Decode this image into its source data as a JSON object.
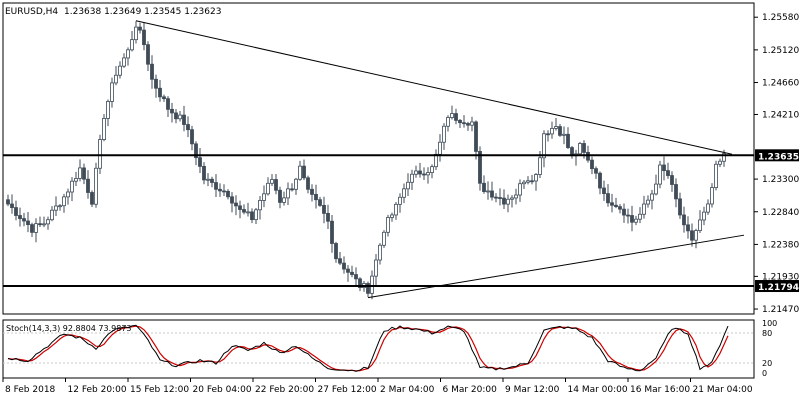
{
  "header": {
    "symbol": "EURUSD,H4",
    "ohlc": "1.23638 1.23649 1.23545 1.23623"
  },
  "price_axis": {
    "ticks": [
      {
        "label": "1.25580",
        "value": 1.2558
      },
      {
        "label": "1.25120",
        "value": 1.2512
      },
      {
        "label": "1.24660",
        "value": 1.2466
      },
      {
        "label": "1.24210",
        "value": 1.2421
      },
      {
        "label": "1.23300",
        "value": 1.233
      },
      {
        "label": "1.22840",
        "value": 1.2284
      },
      {
        "label": "1.22380",
        "value": 1.2238
      },
      {
        "label": "1.21930",
        "value": 1.2193
      },
      {
        "label": "1.21470",
        "value": 1.2147
      }
    ],
    "range": [
      1.214,
      1.2578
    ],
    "current_price_label": "1.23635",
    "support_label": "1.21794"
  },
  "time_axis": {
    "labels": [
      "8 Feb 2018",
      "12 Feb 20:00",
      "15 Feb 12:00",
      "20 Feb 04:00",
      "22 Feb 20:00",
      "27 Feb 12:00",
      "2 Mar 04:00",
      "6 Mar 20:00",
      "9 Mar 12:00",
      "14 Mar 00:00",
      "16 Mar 16:00",
      "21 Mar 04:00"
    ]
  },
  "stochastic": {
    "label": "Stoch(14,3,3) 92.8804 73.9873",
    "levels": [
      "100",
      "80",
      "20",
      "0"
    ]
  },
  "colors": {
    "candle": "#3f4b57",
    "line": "#000000",
    "grid": "#c8c8c8",
    "stoch_main": "#000000",
    "stoch_signal": "#d00000",
    "label_bg": "#000000",
    "label_text": "#ffffff"
  },
  "chart_data": {
    "type": "candlestick",
    "symbol": "EURUSD",
    "timeframe": "H4",
    "ylim": [
      1.214,
      1.2578
    ],
    "keypoints": [
      [
        0,
        1.2295
      ],
      [
        6,
        1.226
      ],
      [
        9,
        1.2268
      ],
      [
        14,
        1.2305
      ],
      [
        18,
        1.2345
      ],
      [
        21,
        1.23
      ],
      [
        24,
        1.242
      ],
      [
        27,
        1.248
      ],
      [
        30,
        1.251
      ],
      [
        32,
        1.2548
      ],
      [
        34,
        1.252
      ],
      [
        36,
        1.247
      ],
      [
        40,
        1.243
      ],
      [
        44,
        1.241
      ],
      [
        46,
        1.238
      ],
      [
        49,
        1.233
      ],
      [
        52,
        1.232
      ],
      [
        55,
        1.231
      ],
      [
        58,
        1.2285
      ],
      [
        61,
        1.2275
      ],
      [
        63,
        1.23
      ],
      [
        66,
        1.233
      ],
      [
        68,
        1.23
      ],
      [
        71,
        1.232
      ],
      [
        73,
        1.2345
      ],
      [
        75,
        1.231
      ],
      [
        78,
        1.229
      ],
      [
        80,
        1.227
      ],
      [
        82,
        1.222
      ],
      [
        85,
        1.22
      ],
      [
        88,
        1.218
      ],
      [
        90,
        1.2175
      ],
      [
        92,
        1.2215
      ],
      [
        94,
        1.226
      ],
      [
        97,
        1.229
      ],
      [
        100,
        1.233
      ],
      [
        103,
        1.234
      ],
      [
        106,
        1.2345
      ],
      [
        108,
        1.238
      ],
      [
        110,
        1.242
      ],
      [
        113,
        1.2415
      ],
      [
        116,
        1.241
      ],
      [
        118,
        1.232
      ],
      [
        121,
        1.231
      ],
      [
        124,
        1.23
      ],
      [
        127,
        1.231
      ],
      [
        129,
        1.233
      ],
      [
        132,
        1.2335
      ],
      [
        134,
        1.2395
      ],
      [
        137,
        1.2405
      ],
      [
        139,
        1.239
      ],
      [
        141,
        1.236
      ],
      [
        143,
        1.2375
      ],
      [
        145,
        1.2355
      ],
      [
        147,
        1.234
      ],
      [
        149,
        1.2305
      ],
      [
        152,
        1.2295
      ],
      [
        154,
        1.2285
      ],
      [
        156,
        1.227
      ],
      [
        158,
        1.228
      ],
      [
        161,
        1.231
      ],
      [
        163,
        1.2345
      ],
      [
        165,
        1.2335
      ],
      [
        167,
        1.23
      ],
      [
        169,
        1.226
      ],
      [
        171,
        1.2245
      ],
      [
        173,
        1.227
      ],
      [
        175,
        1.229
      ],
      [
        177,
        1.2345
      ],
      [
        179,
        1.2362
      ]
    ],
    "resistance_level": 1.23635,
    "support_level": 1.21794,
    "trendlines": [
      {
        "name": "descending",
        "from": [
          32,
          1.2553
        ],
        "to": [
          181,
          1.2365
        ]
      },
      {
        "name": "ascending",
        "from": [
          90,
          1.2163
        ],
        "to": [
          184,
          1.2251
        ]
      }
    ],
    "stochastic": {
      "k": 92.8804,
      "d": 73.9873,
      "params": [
        14,
        3,
        3
      ],
      "k_keypoints": [
        [
          0,
          30
        ],
        [
          5,
          25
        ],
        [
          10,
          55
        ],
        [
          14,
          78
        ],
        [
          18,
          70
        ],
        [
          22,
          50
        ],
        [
          26,
          85
        ],
        [
          32,
          95
        ],
        [
          35,
          65
        ],
        [
          38,
          25
        ],
        [
          42,
          15
        ],
        [
          48,
          25
        ],
        [
          52,
          20
        ],
        [
          56,
          55
        ],
        [
          60,
          45
        ],
        [
          64,
          60
        ],
        [
          68,
          40
        ],
        [
          72,
          55
        ],
        [
          76,
          30
        ],
        [
          80,
          10
        ],
        [
          86,
          5
        ],
        [
          90,
          10
        ],
        [
          94,
          85
        ],
        [
          98,
          92
        ],
        [
          102,
          88
        ],
        [
          106,
          80
        ],
        [
          110,
          92
        ],
        [
          114,
          85
        ],
        [
          118,
          10
        ],
        [
          122,
          8
        ],
        [
          126,
          12
        ],
        [
          130,
          20
        ],
        [
          134,
          85
        ],
        [
          138,
          92
        ],
        [
          142,
          88
        ],
        [
          146,
          70
        ],
        [
          150,
          25
        ],
        [
          154,
          10
        ],
        [
          158,
          5
        ],
        [
          162,
          30
        ],
        [
          166,
          90
        ],
        [
          170,
          80
        ],
        [
          173,
          10
        ],
        [
          176,
          20
        ],
        [
          180,
          95
        ]
      ]
    }
  }
}
